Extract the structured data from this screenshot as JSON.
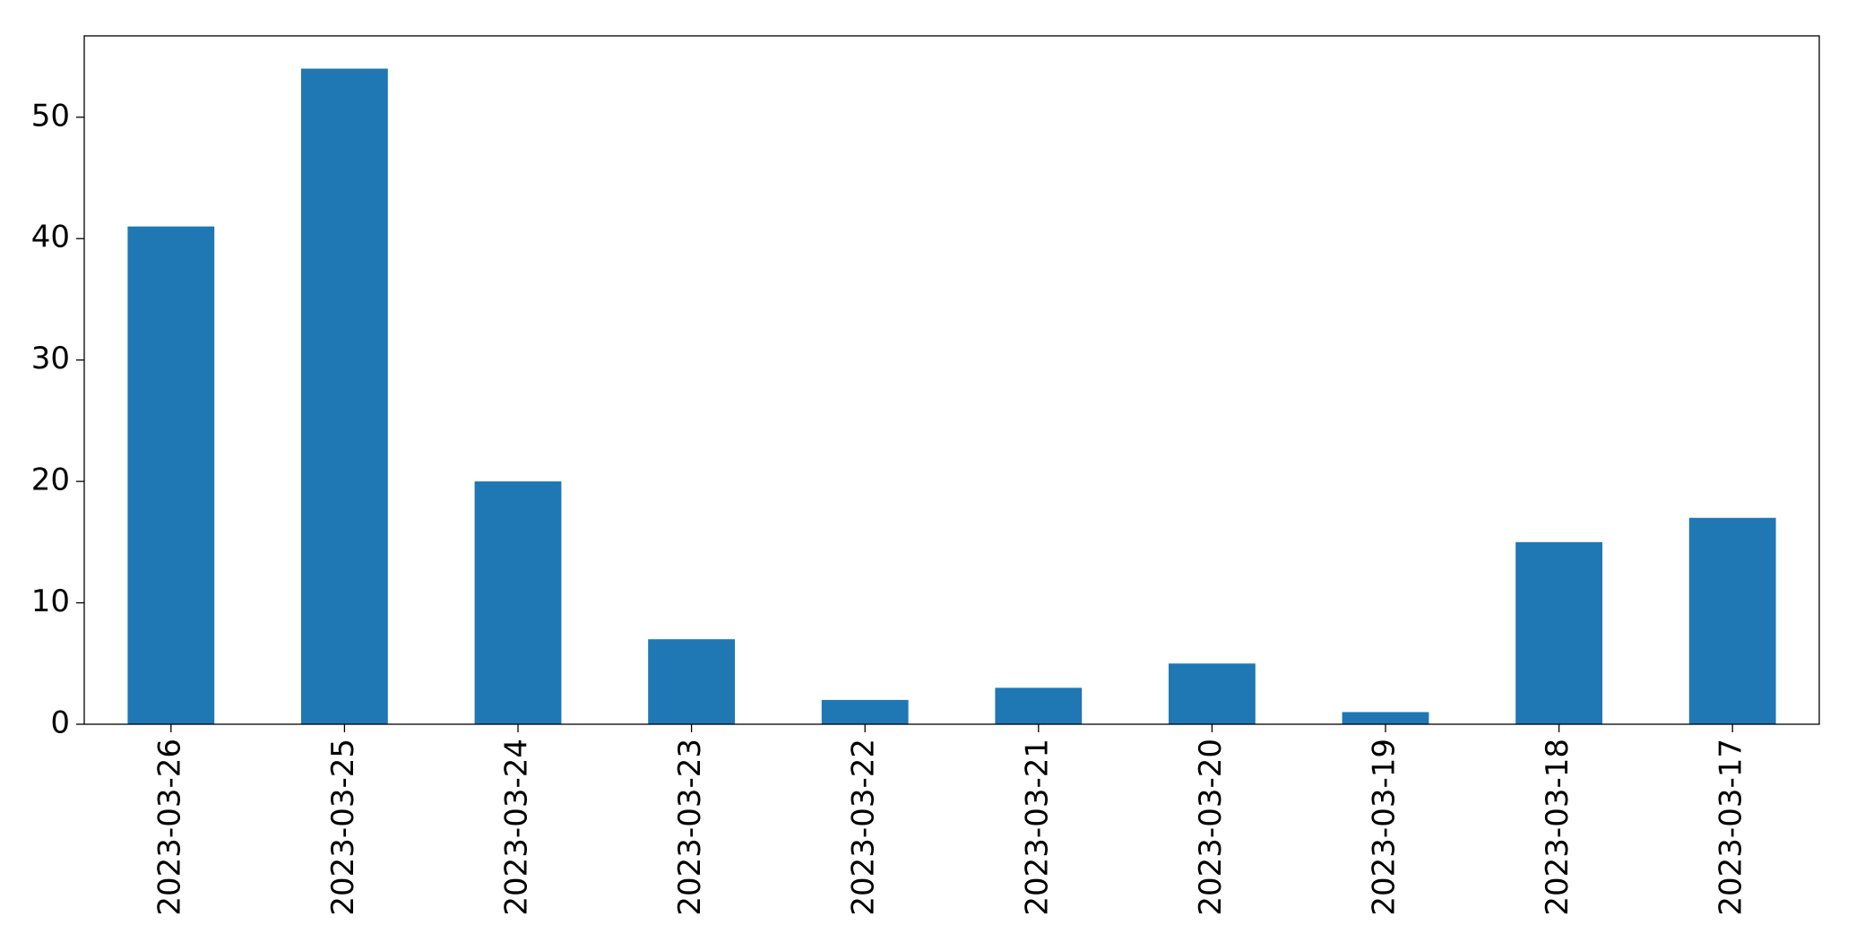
{
  "chart_data": {
    "type": "bar",
    "categories": [
      "2023-03-26",
      "2023-03-25",
      "2023-03-24",
      "2023-03-23",
      "2023-03-22",
      "2023-03-21",
      "2023-03-20",
      "2023-03-19",
      "2023-03-18",
      "2023-03-17"
    ],
    "values": [
      41,
      54,
      20,
      7,
      2,
      3,
      5,
      1,
      15,
      17
    ],
    "color": "#1f77b4",
    "ylim": [
      0,
      56.7
    ],
    "yticks": [
      0,
      10,
      20,
      30,
      40,
      50
    ],
    "grid": false
  }
}
